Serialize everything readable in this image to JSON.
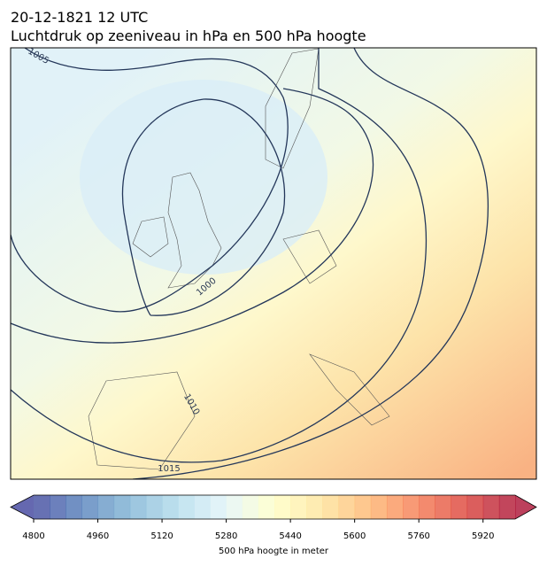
{
  "title": {
    "line1": "20-12-1821 12 UTC",
    "line2": "Luchtdruk op zeeniveau in hPa en 500 hPa hoogte"
  },
  "map": {
    "contour_labels": [
      "1005",
      "1000",
      "1010",
      "1015"
    ]
  },
  "colorbar": {
    "lim": [
      4800,
      6000
    ],
    "ticks": [
      4800,
      4960,
      5120,
      5280,
      5440,
      5600,
      5760,
      5920
    ],
    "label": "500 hPa hoogte in meter",
    "extend": "both"
  }
}
